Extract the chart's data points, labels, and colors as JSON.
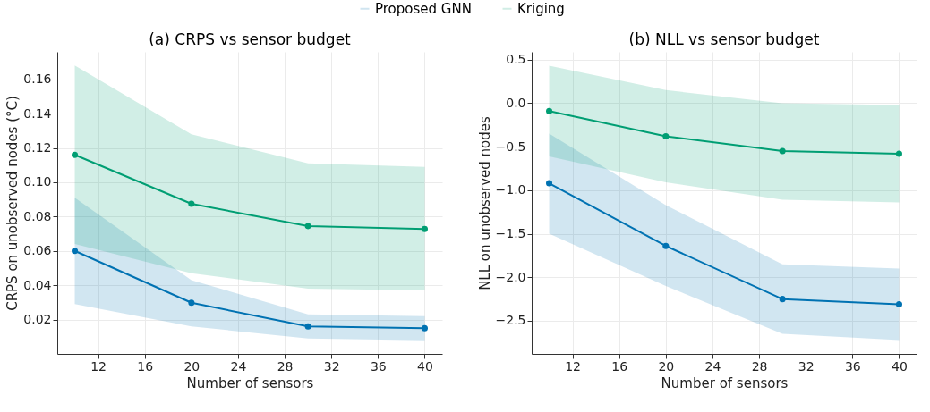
{
  "chart_data": [
    {
      "type": "line",
      "title": "(a) CRPS vs sensor budget",
      "xlabel": "Number of sensors",
      "ylabel": "CRPS on unobserved nodes (°C)",
      "x": [
        10,
        20,
        30,
        40
      ],
      "xlim": [
        8.5,
        41.5
      ],
      "xticks": [
        12,
        16,
        20,
        24,
        28,
        32,
        36,
        40
      ],
      "ylim": [
        0,
        0.176
      ],
      "yticks": [
        0.02,
        0.04,
        0.06,
        0.08,
        {
          "value": 0.1,
          "label": "0.10"
        },
        0.12,
        0.14,
        0.16
      ],
      "grid": true,
      "marker": "circle",
      "legend": "top",
      "series": [
        {
          "name": "Proposed GNN",
          "color": "#0072b2",
          "values": [
            0.06,
            0.0298,
            0.016,
            0.015
          ],
          "lower": [
            0.029,
            0.016,
            0.009,
            0.008
          ],
          "upper": [
            0.091,
            0.043,
            0.023,
            0.022
          ]
        },
        {
          "name": "Kriging",
          "color": "#009e73",
          "values": [
            0.116,
            0.0875,
            0.0745,
            0.0728
          ],
          "lower": [
            0.064,
            0.047,
            0.038,
            0.037
          ],
          "upper": [
            0.168,
            0.128,
            0.111,
            0.109
          ]
        }
      ]
    },
    {
      "type": "line",
      "title": "(b) NLL vs sensor budget",
      "xlabel": "Number of sensors",
      "ylabel": "NLL on unobserved nodes",
      "x": [
        10,
        20,
        30,
        40
      ],
      "xlim": [
        8.5,
        41.5
      ],
      "xticks": [
        12,
        16,
        20,
        24,
        28,
        32,
        36,
        40
      ],
      "ylim": [
        -2.88,
        0.59
      ],
      "yticks": [
        {
          "value": -2.5,
          "label": "−2.5"
        },
        {
          "value": -2,
          "label": "−2.0"
        },
        {
          "value": -1.5,
          "label": "−1.5"
        },
        {
          "value": -1,
          "label": "−1.0"
        },
        {
          "value": -0.5,
          "label": "−0.5"
        },
        {
          "value": 0,
          "label": "0.0"
        },
        0.5
      ],
      "grid": true,
      "marker": "circle",
      "legend": "top",
      "series": [
        {
          "name": "Proposed GNN",
          "color": "#0072b2",
          "values": [
            -0.92,
            -1.64,
            -2.25,
            -2.31
          ],
          "lower": [
            -1.5,
            -2.1,
            -2.65,
            -2.72
          ],
          "upper": [
            -0.35,
            -1.17,
            -1.85,
            -1.9
          ]
        },
        {
          "name": "Kriging",
          "color": "#009e73",
          "values": [
            -0.09,
            -0.38,
            -0.55,
            -0.58
          ],
          "lower": [
            -0.61,
            -0.91,
            -1.11,
            -1.14
          ],
          "upper": [
            0.43,
            0.15,
            0.0,
            -0.02
          ]
        }
      ]
    }
  ]
}
